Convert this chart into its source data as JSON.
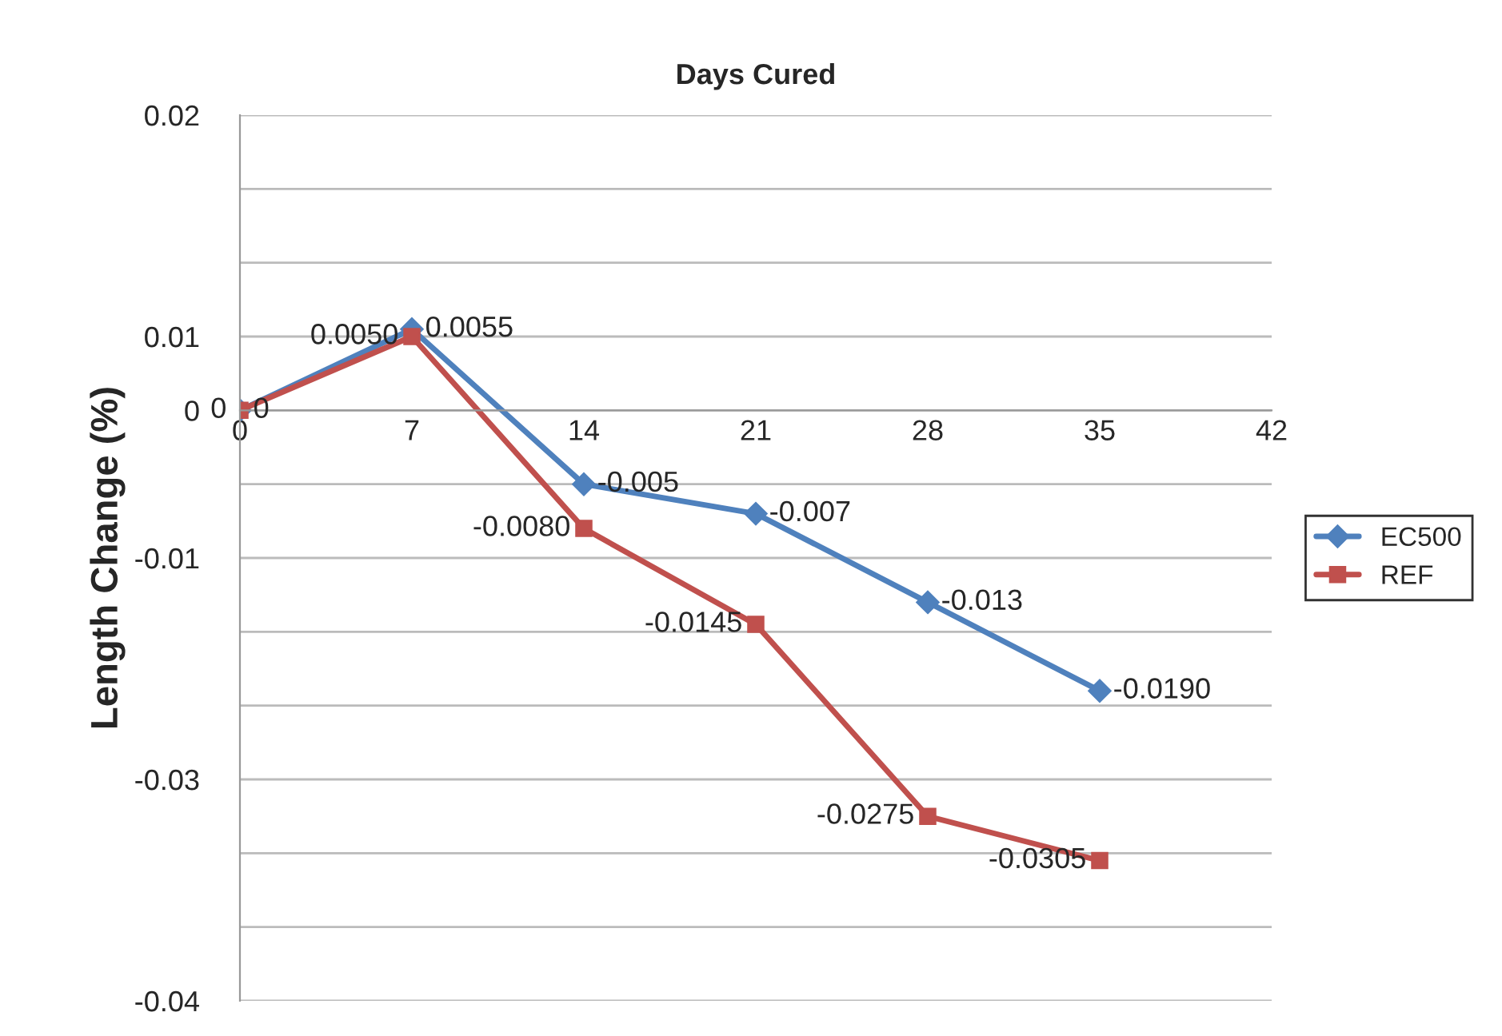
{
  "chart_data": {
    "type": "line",
    "title": "Days Cured",
    "ylabel": "Length Change (%)",
    "x": [
      0,
      7,
      14,
      21,
      28,
      35
    ],
    "series": [
      {
        "name": "EC500",
        "color": "#4f81bd",
        "marker": "diamond",
        "values": [
          0,
          0.0055,
          -0.005,
          -0.007,
          -0.013,
          -0.019
        ],
        "value_labels": [
          "0",
          "0.0055",
          "-0.005",
          "-0.007",
          "-0.013",
          "-0.0190"
        ]
      },
      {
        "name": "REF",
        "color": "#c0504d",
        "marker": "square",
        "values": [
          0,
          0.005,
          -0.008,
          -0.0145,
          -0.0275,
          -0.0305
        ],
        "value_labels": [
          "0",
          "0.0050",
          "-0.0080",
          "-0.0145",
          "-0.0275",
          "-0.0305"
        ]
      }
    ],
    "xlim": [
      0,
      42
    ],
    "xticks": [
      0,
      7,
      14,
      21,
      28,
      35,
      42
    ],
    "ylim": [
      -0.04,
      0.02
    ],
    "yticks": [
      {
        "value": 0.02,
        "label": "0.02"
      },
      {
        "value": 0.015,
        "label": null
      },
      {
        "value": 0.01,
        "label": null
      },
      {
        "value": 0.005,
        "label": "0.01"
      },
      {
        "value": 0,
        "label": "0"
      },
      {
        "value": -0.005,
        "label": null
      },
      {
        "value": -0.01,
        "label": "-0.01"
      },
      {
        "value": -0.015,
        "label": null
      },
      {
        "value": -0.02,
        "label": null
      },
      {
        "value": -0.025,
        "label": "-0.03"
      },
      {
        "value": -0.03,
        "label": null
      },
      {
        "value": -0.035,
        "label": null
      },
      {
        "value": -0.04,
        "label": "-0.04"
      }
    ],
    "grid": "y",
    "legend": "right",
    "line_style": "solid"
  }
}
